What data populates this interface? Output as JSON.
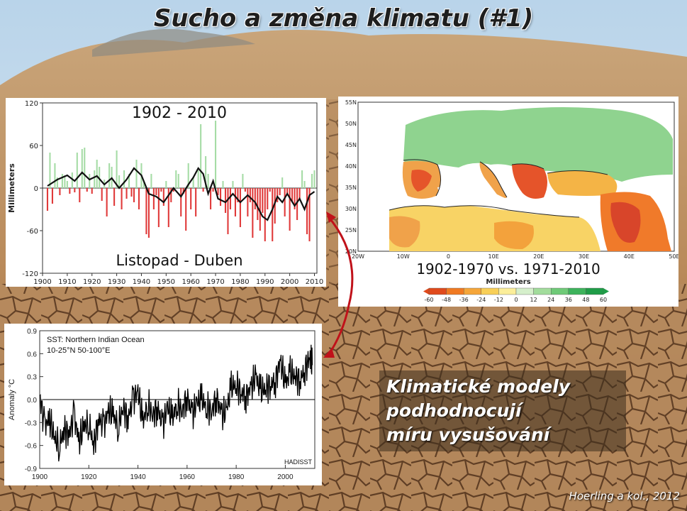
{
  "slide": {
    "title": "Sucho a změna klimatu (#1)",
    "caption_lines": [
      "Klimatické modely",
      "podhodnocují",
      "míru vysušování"
    ],
    "source": "Hoerling a kol., 2012"
  },
  "colors": {
    "positive_bar": "#a6dca6",
    "negative_bar": "#e03a3a",
    "smooth_line": "#111111"
  },
  "chart_data": [
    {
      "type": "bar",
      "title": "1902 - 2010",
      "subtitle": "Listopad - Duben",
      "ylabel": "Millimeters",
      "xlabel": "",
      "xlim": [
        1900,
        2011
      ],
      "ylim": [
        -120,
        120
      ],
      "yticks": [
        120,
        60,
        0,
        -60,
        -120
      ],
      "xticks": [
        1900,
        1910,
        1920,
        1930,
        1940,
        1950,
        1960,
        1970,
        1980,
        1990,
        2000,
        2010
      ],
      "years": [
        1902,
        1903,
        1904,
        1905,
        1906,
        1907,
        1908,
        1909,
        1910,
        1911,
        1912,
        1913,
        1914,
        1915,
        1916,
        1917,
        1918,
        1919,
        1920,
        1921,
        1922,
        1923,
        1924,
        1925,
        1926,
        1927,
        1928,
        1929,
        1930,
        1931,
        1932,
        1933,
        1934,
        1935,
        1936,
        1937,
        1938,
        1939,
        1940,
        1941,
        1942,
        1943,
        1944,
        1945,
        1946,
        1947,
        1948,
        1949,
        1950,
        1951,
        1952,
        1953,
        1954,
        1955,
        1956,
        1957,
        1958,
        1959,
        1960,
        1961,
        1962,
        1963,
        1964,
        1965,
        1966,
        1967,
        1968,
        1969,
        1970,
        1971,
        1972,
        1973,
        1974,
        1975,
        1976,
        1977,
        1978,
        1979,
        1980,
        1981,
        1982,
        1983,
        1984,
        1985,
        1986,
        1987,
        1988,
        1989,
        1990,
        1991,
        1992,
        1993,
        1994,
        1995,
        1996,
        1997,
        1998,
        1999,
        2000,
        2001,
        2002,
        2003,
        2004,
        2005,
        2006,
        2007,
        2008,
        2009,
        2010
      ],
      "values": [
        -32,
        50,
        -22,
        35,
        15,
        -10,
        20,
        18,
        10,
        -8,
        22,
        -6,
        50,
        -20,
        55,
        57,
        -5,
        20,
        -8,
        25,
        40,
        30,
        -18,
        12,
        -40,
        35,
        30,
        -25,
        53,
        18,
        -30,
        25,
        -15,
        20,
        -12,
        -20,
        40,
        -30,
        35,
        10,
        -65,
        -70,
        20,
        -30,
        -10,
        -55,
        -5,
        -25,
        10,
        -55,
        -20,
        -5,
        25,
        20,
        -40,
        -8,
        -60,
        35,
        -30,
        15,
        -40,
        25,
        90,
        -5,
        45,
        20,
        -30,
        -5,
        95,
        -10,
        -25,
        10,
        -35,
        -65,
        -30,
        10,
        -40,
        -20,
        -55,
        20,
        -5,
        -40,
        -20,
        -70,
        -30,
        -45,
        -60,
        -35,
        -75,
        -30,
        -5,
        -75,
        -50,
        -20,
        -10,
        15,
        -40,
        -10,
        -60,
        -20,
        -30,
        -45,
        -15,
        25,
        10,
        -65,
        -75,
        20,
        25
      ],
      "smooth": [
        [
          1902,
          3
        ],
        [
          1906,
          12
        ],
        [
          1910,
          18
        ],
        [
          1913,
          10
        ],
        [
          1916,
          22
        ],
        [
          1919,
          12
        ],
        [
          1922,
          17
        ],
        [
          1925,
          5
        ],
        [
          1928,
          14
        ],
        [
          1931,
          0
        ],
        [
          1934,
          12
        ],
        [
          1937,
          28
        ],
        [
          1940,
          18
        ],
        [
          1943,
          -8
        ],
        [
          1946,
          -12
        ],
        [
          1949,
          -20
        ],
        [
          1951,
          -10
        ],
        [
          1953,
          0
        ],
        [
          1956,
          -12
        ],
        [
          1959,
          5
        ],
        [
          1961,
          15
        ],
        [
          1963,
          28
        ],
        [
          1965,
          20
        ],
        [
          1967,
          -8
        ],
        [
          1969,
          10
        ],
        [
          1971,
          -15
        ],
        [
          1974,
          -20
        ],
        [
          1977,
          -8
        ],
        [
          1980,
          -20
        ],
        [
          1983,
          -10
        ],
        [
          1986,
          -20
        ],
        [
          1989,
          -40
        ],
        [
          1991,
          -45
        ],
        [
          1993,
          -30
        ],
        [
          1995,
          -12
        ],
        [
          1997,
          -20
        ],
        [
          1999,
          -8
        ],
        [
          2002,
          -25
        ],
        [
          2004,
          -15
        ],
        [
          2006,
          -30
        ],
        [
          2008,
          -10
        ],
        [
          2010,
          -5
        ]
      ]
    },
    {
      "type": "heatmap",
      "title": "1902-1970 vs. 1971-2010",
      "xlabel": "Millimeters",
      "legend_ticks": [
        "-60",
        "-48",
        "-36",
        "-24",
        "-12",
        "0",
        "12",
        "24",
        "36",
        "48",
        "60"
      ],
      "legend_colors": [
        "#e04a1c",
        "#f07a22",
        "#f5a63a",
        "#f8cf58",
        "#fbee9a",
        "#d5efcb",
        "#a2dc9c",
        "#6fca78",
        "#3db35c",
        "#1f9d48"
      ],
      "lat_ticks": [
        "55N",
        "50N",
        "45N",
        "40N",
        "35N",
        "30N",
        "25N",
        "20N"
      ],
      "lon_ticks": [
        "20W",
        "10W",
        "0",
        "10E",
        "20E",
        "30E",
        "40E",
        "50E"
      ]
    },
    {
      "type": "line",
      "title": "SST: Northern Indian Ocean",
      "subtitle": "10-25°N 50-100°E",
      "ylabel": "Anomaly °C",
      "source_label": "HADISST",
      "xlim": [
        1900,
        2012
      ],
      "ylim": [
        -0.9,
        0.9
      ],
      "yticks": [
        "0.9",
        "0.6",
        "0.3",
        "0.0",
        "-0.3",
        "-0.6",
        "-0.9"
      ],
      "xticks": [
        "1900",
        "1920",
        "1940",
        "1960",
        "1980",
        "2000"
      ],
      "x": [
        1900,
        1902,
        1904,
        1906,
        1908,
        1910,
        1912,
        1914,
        1916,
        1918,
        1920,
        1922,
        1924,
        1926,
        1928,
        1930,
        1932,
        1934,
        1936,
        1938,
        1940,
        1942,
        1944,
        1946,
        1948,
        1950,
        1952,
        1954,
        1956,
        1958,
        1960,
        1962,
        1964,
        1966,
        1968,
        1970,
        1972,
        1974,
        1976,
        1978,
        1980,
        1982,
        1984,
        1986,
        1988,
        1990,
        1992,
        1994,
        1996,
        1998,
        2000,
        2002,
        2004,
        2006,
        2008,
        2010,
        2011
      ],
      "y": [
        0.05,
        -0.35,
        -0.25,
        -0.5,
        -0.6,
        -0.4,
        -0.45,
        -0.2,
        -0.55,
        -0.35,
        -0.3,
        -0.6,
        -0.25,
        -0.35,
        -0.15,
        -0.2,
        -0.35,
        -0.1,
        -0.25,
        0.0,
        0.1,
        -0.3,
        -0.05,
        -0.2,
        -0.1,
        -0.35,
        -0.1,
        -0.25,
        -0.05,
        -0.15,
        0.05,
        -0.2,
        -0.05,
        0.0,
        -0.1,
        -0.15,
        0.05,
        -0.2,
        -0.15,
        0.15,
        0.2,
        0.1,
        0.05,
        0.15,
        0.3,
        0.1,
        0.15,
        0.2,
        0.25,
        0.5,
        0.2,
        0.35,
        0.3,
        0.25,
        0.4,
        0.55,
        0.45
      ]
    }
  ]
}
